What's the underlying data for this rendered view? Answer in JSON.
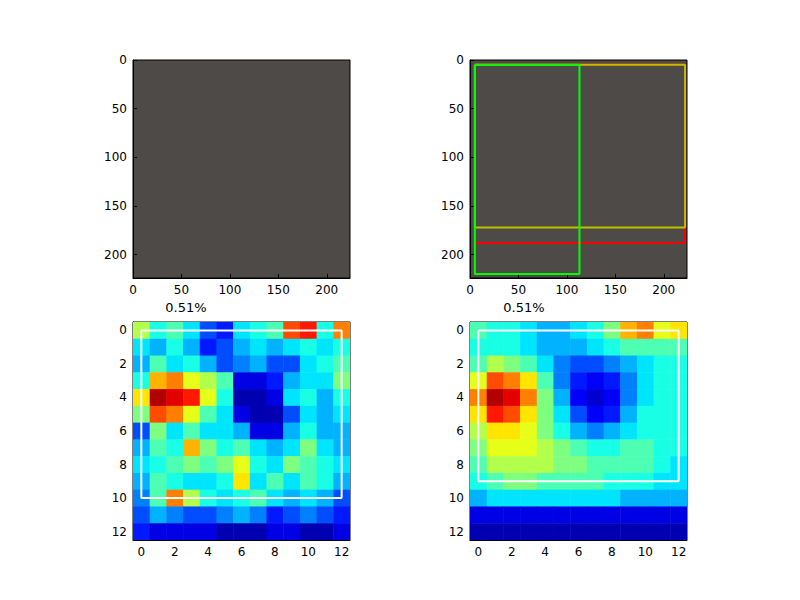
{
  "chart_data": [
    {
      "type": "image",
      "xlim": [
        0,
        224
      ],
      "ylim": [
        224,
        0
      ],
      "xticks": [
        0,
        50,
        100,
        150,
        200
      ],
      "yticks": [
        0,
        50,
        100,
        150,
        200
      ]
    },
    {
      "type": "image",
      "xlim": [
        0,
        224
      ],
      "ylim": [
        224,
        0
      ],
      "xticks": [
        0,
        50,
        100,
        150,
        200
      ],
      "yticks": [
        0,
        50,
        100,
        150,
        200
      ],
      "boxes": [
        {
          "color": "#ff0000",
          "x": [
            5,
            222
          ],
          "y": [
            5,
            188
          ]
        },
        {
          "color": "#bfbf00",
          "x": [
            5,
            222
          ],
          "y": [
            5,
            172
          ]
        },
        {
          "color": "#00ff00",
          "x": [
            5,
            113
          ],
          "y": [
            5,
            220
          ]
        }
      ]
    },
    {
      "type": "heatmap",
      "title": "0.51%",
      "color": "jet",
      "xlim": [
        -0.5,
        12.5
      ],
      "ylim": [
        12.5,
        -0.5
      ],
      "xticks": [
        0,
        2,
        4,
        6,
        8,
        10,
        12
      ],
      "yticks": [
        0,
        2,
        4,
        6,
        8,
        10,
        12
      ],
      "zlim": [
        0,
        1
      ],
      "cells": [
        [
          0.55,
          0.4,
          0.45,
          0.35,
          0.2,
          0.15,
          0.35,
          0.4,
          0.45,
          0.8,
          0.85,
          0.4,
          0.75
        ],
        [
          0.35,
          0.3,
          0.4,
          0.3,
          0.15,
          0.2,
          0.3,
          0.35,
          0.3,
          0.35,
          0.4,
          0.35,
          0.4
        ],
        [
          0.3,
          0.45,
          0.35,
          0.4,
          0.3,
          0.2,
          0.25,
          0.3,
          0.2,
          0.2,
          0.35,
          0.4,
          0.45
        ],
        [
          0.4,
          0.7,
          0.75,
          0.6,
          0.55,
          0.45,
          0.1,
          0.1,
          0.15,
          0.3,
          0.35,
          0.35,
          0.5
        ],
        [
          0.65,
          0.95,
          0.9,
          0.85,
          0.6,
          0.4,
          0.05,
          0.05,
          0.1,
          0.35,
          0.4,
          0.3,
          0.4
        ],
        [
          0.5,
          0.8,
          0.75,
          0.6,
          0.45,
          0.35,
          0.1,
          0.05,
          0.05,
          0.2,
          0.35,
          0.3,
          0.35
        ],
        [
          0.2,
          0.5,
          0.35,
          0.45,
          0.35,
          0.35,
          0.3,
          0.1,
          0.1,
          0.3,
          0.4,
          0.3,
          0.3
        ],
        [
          0.3,
          0.45,
          0.4,
          0.7,
          0.5,
          0.4,
          0.45,
          0.35,
          0.3,
          0.35,
          0.5,
          0.35,
          0.3
        ],
        [
          0.35,
          0.4,
          0.45,
          0.5,
          0.45,
          0.5,
          0.6,
          0.4,
          0.35,
          0.5,
          0.45,
          0.4,
          0.35
        ],
        [
          0.3,
          0.45,
          0.4,
          0.35,
          0.35,
          0.4,
          0.65,
          0.35,
          0.45,
          0.35,
          0.45,
          0.4,
          0.3
        ],
        [
          0.25,
          0.45,
          0.75,
          0.55,
          0.4,
          0.35,
          0.4,
          0.45,
          0.35,
          0.3,
          0.35,
          0.3,
          0.2
        ],
        [
          0.2,
          0.3,
          0.25,
          0.2,
          0.2,
          0.25,
          0.3,
          0.25,
          0.15,
          0.2,
          0.25,
          0.2,
          0.15
        ],
        [
          0.15,
          0.1,
          0.1,
          0.1,
          0.1,
          0.05,
          0.05,
          0.05,
          0.1,
          0.1,
          0.05,
          0.05,
          0.1
        ]
      ],
      "boxes": [
        {
          "color": "#ffffff",
          "x": [
            0,
            12
          ],
          "y": [
            0,
            10
          ]
        }
      ]
    },
    {
      "type": "heatmap",
      "title": "0.51%",
      "color": "jet",
      "xlim": [
        -0.5,
        12.5
      ],
      "ylim": [
        12.5,
        -0.5
      ],
      "xticks": [
        0,
        2,
        4,
        6,
        8,
        10,
        12
      ],
      "yticks": [
        0,
        2,
        4,
        6,
        8,
        10,
        12
      ],
      "zlim": [
        0,
        1
      ],
      "cells": [
        [
          0.45,
          0.4,
          0.4,
          0.35,
          0.3,
          0.3,
          0.35,
          0.4,
          0.5,
          0.7,
          0.75,
          0.6,
          0.65
        ],
        [
          0.4,
          0.4,
          0.4,
          0.35,
          0.3,
          0.3,
          0.3,
          0.35,
          0.4,
          0.45,
          0.45,
          0.45,
          0.45
        ],
        [
          0.45,
          0.55,
          0.5,
          0.45,
          0.35,
          0.25,
          0.2,
          0.2,
          0.25,
          0.3,
          0.35,
          0.4,
          0.4
        ],
        [
          0.6,
          0.8,
          0.75,
          0.65,
          0.45,
          0.25,
          0.15,
          0.12,
          0.15,
          0.25,
          0.35,
          0.4,
          0.4
        ],
        [
          0.75,
          0.95,
          0.9,
          0.75,
          0.5,
          0.3,
          0.12,
          0.08,
          0.12,
          0.25,
          0.35,
          0.4,
          0.4
        ],
        [
          0.65,
          0.85,
          0.8,
          0.65,
          0.5,
          0.35,
          0.2,
          0.12,
          0.15,
          0.3,
          0.4,
          0.4,
          0.4
        ],
        [
          0.55,
          0.65,
          0.65,
          0.6,
          0.5,
          0.4,
          0.3,
          0.25,
          0.3,
          0.35,
          0.4,
          0.4,
          0.4
        ],
        [
          0.5,
          0.6,
          0.6,
          0.6,
          0.55,
          0.5,
          0.45,
          0.4,
          0.4,
          0.45,
          0.45,
          0.4,
          0.4
        ],
        [
          0.45,
          0.55,
          0.55,
          0.55,
          0.55,
          0.5,
          0.5,
          0.45,
          0.45,
          0.45,
          0.45,
          0.4,
          0.35
        ],
        [
          0.4,
          0.45,
          0.5,
          0.5,
          0.45,
          0.45,
          0.45,
          0.45,
          0.4,
          0.4,
          0.4,
          0.35,
          0.35
        ],
        [
          0.3,
          0.35,
          0.35,
          0.35,
          0.35,
          0.35,
          0.35,
          0.35,
          0.35,
          0.3,
          0.3,
          0.3,
          0.3
        ],
        [
          0.1,
          0.1,
          0.1,
          0.1,
          0.1,
          0.1,
          0.1,
          0.1,
          0.1,
          0.1,
          0.1,
          0.1,
          0.1
        ],
        [
          0.05,
          0.05,
          0.05,
          0.05,
          0.05,
          0.05,
          0.05,
          0.05,
          0.05,
          0.05,
          0.05,
          0.05,
          0.05
        ]
      ],
      "boxes": [
        {
          "color": "#ffffff",
          "x": [
            0,
            12
          ],
          "y": [
            0,
            9
          ]
        }
      ]
    }
  ]
}
